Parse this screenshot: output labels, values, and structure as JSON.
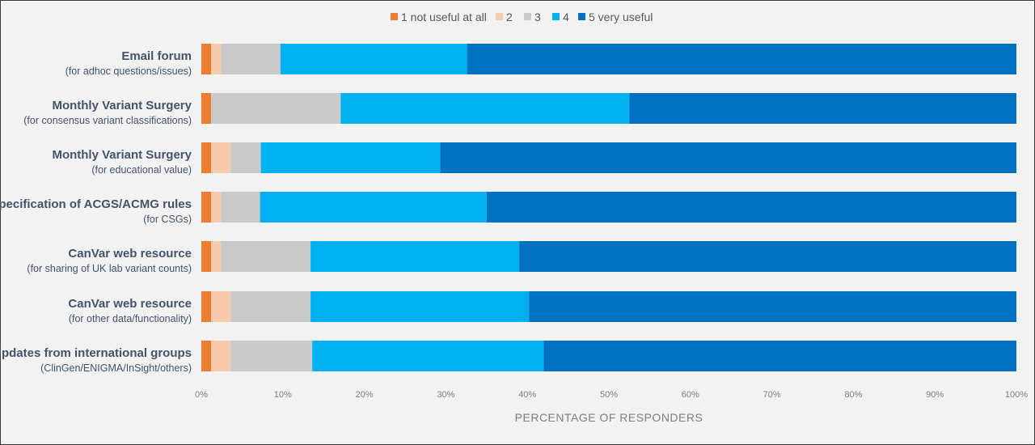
{
  "chart_data": {
    "type": "bar",
    "orientation": "horizontal",
    "stacked": true,
    "xlabel": "PERCENTAGE OF RESPONDERS",
    "xlim": [
      0,
      100
    ],
    "x_ticks": [
      "0%",
      "10%",
      "20%",
      "30%",
      "40%",
      "50%",
      "60%",
      "70%",
      "80%",
      "90%",
      "100%"
    ],
    "grid": false,
    "legend_position": "top",
    "categories": [
      {
        "title": "Email forum",
        "subtitle": "(for adhoc questions/issues)"
      },
      {
        "title": "Monthly Variant Surgery",
        "subtitle": "(for consensus variant classifications)"
      },
      {
        "title": "Monthly Variant Surgery",
        "subtitle": "(for educational value)"
      },
      {
        "title": "Specification of ACGS/ACMG rules",
        "subtitle": "(for CSGs)"
      },
      {
        "title": "CanVar web resource",
        "subtitle": "(for sharing of UK lab variant counts)"
      },
      {
        "title": "CanVar web resource",
        "subtitle": "(for other data/functionality)"
      },
      {
        "title": "Updates from international groups",
        "subtitle": "(ClinGen/ENIGMA/InSight/others)"
      }
    ],
    "series": [
      {
        "name": "1 not useful at all",
        "color": "#ed7d31",
        "values": [
          1.2,
          1.2,
          1.2,
          1.2,
          1.2,
          1.2,
          1.2
        ]
      },
      {
        "name": "2",
        "color": "#f8cbad",
        "values": [
          1.2,
          0,
          2.4,
          1.2,
          1.2,
          2.4,
          2.4
        ]
      },
      {
        "name": "3",
        "color": "#c9c9c9",
        "values": [
          7.3,
          15.9,
          3.7,
          4.8,
          11.0,
          9.8,
          10.0
        ]
      },
      {
        "name": "4",
        "color": "#00b0f0",
        "values": [
          22.9,
          35.4,
          22.0,
          27.8,
          25.6,
          26.8,
          28.4
        ]
      },
      {
        "name": "5 very useful",
        "color": "#0070c0",
        "values": [
          67.4,
          47.5,
          70.7,
          65.0,
          61.0,
          59.8,
          58.0
        ]
      }
    ]
  }
}
